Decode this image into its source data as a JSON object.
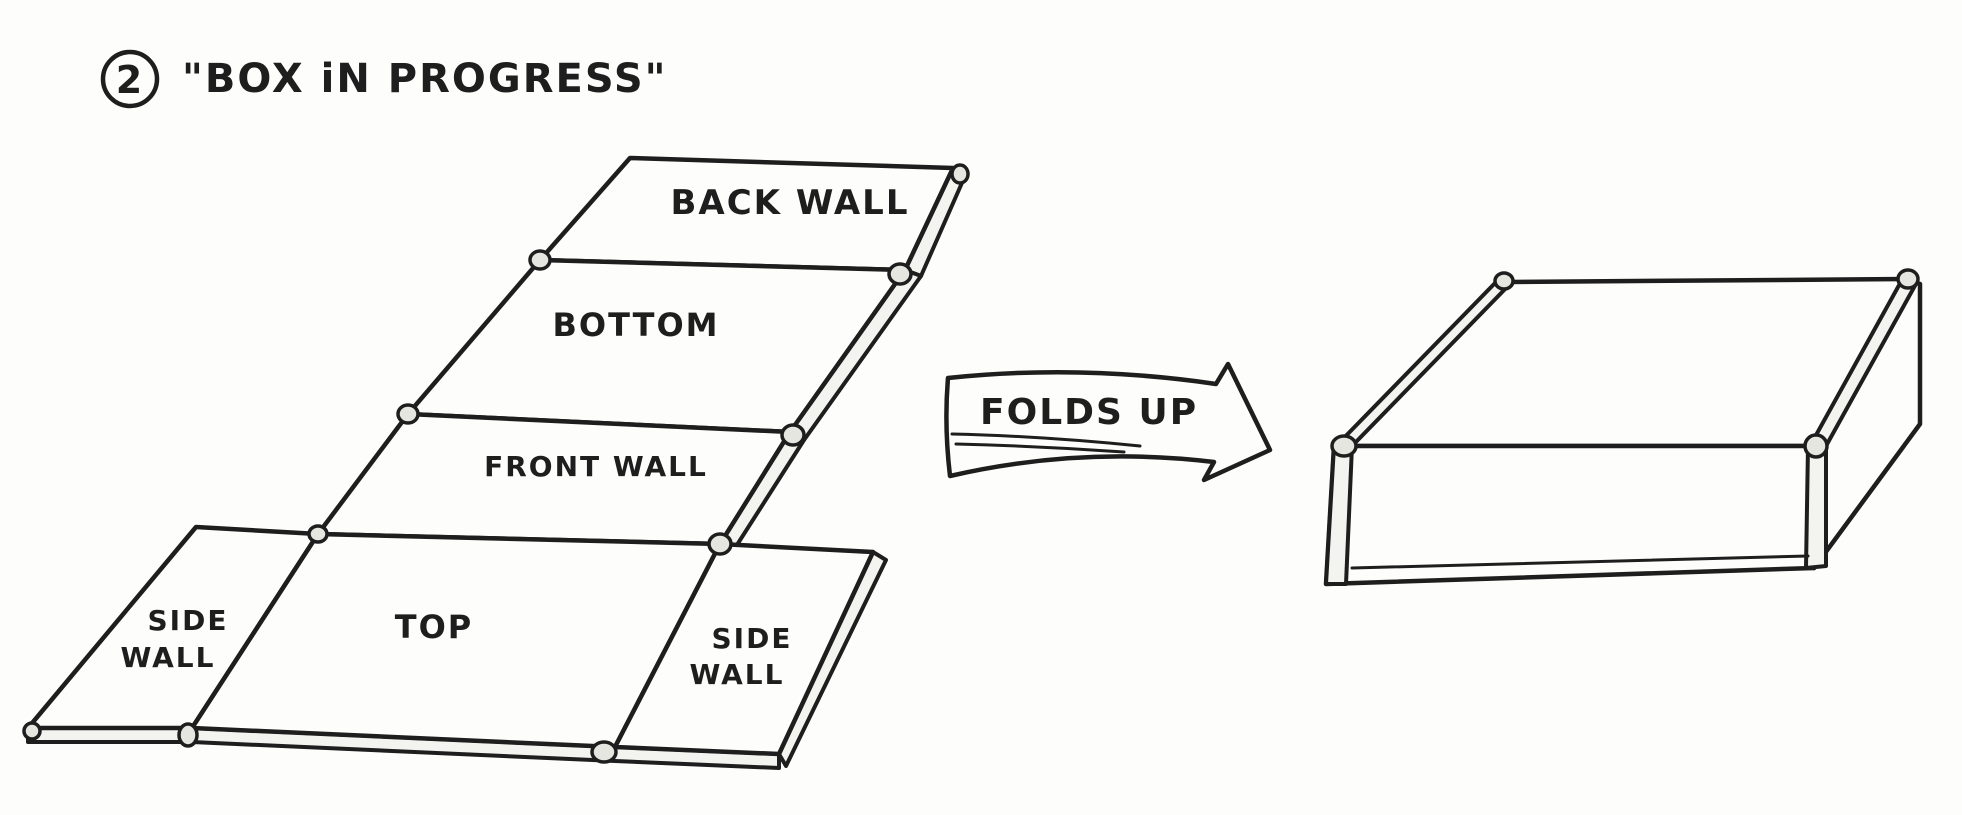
{
  "title": {
    "step_number": "2",
    "text": "\"BOX iN PROGRESS\""
  },
  "flat_box": {
    "labels": {
      "back_wall": "BACK WALL",
      "bottom": "BOTTOM",
      "front_wall": "FRONT WALL",
      "top": "TOP",
      "side_wall_left_line1": "SIDE",
      "side_wall_left_line2": "WALL",
      "side_wall_right_line1": "SIDE",
      "side_wall_right_line2": "WALL"
    }
  },
  "arrow": {
    "label": "FOLDS UP"
  },
  "colors": {
    "ink": "#1e1e1e",
    "paper": "#fdfdfb"
  }
}
